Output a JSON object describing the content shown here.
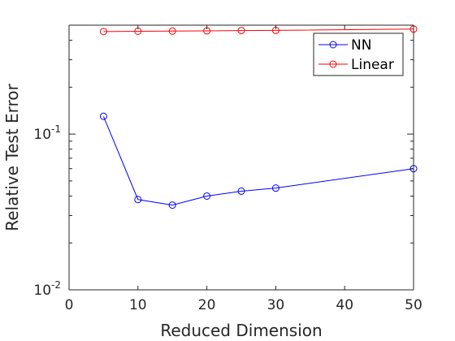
{
  "chart_data": {
    "type": "line",
    "xlabel": "Reduced Dimension",
    "ylabel": "Relative Test Error",
    "xlim": [
      0,
      50
    ],
    "ylim": [
      0.01,
      0.5
    ],
    "yscale": "log",
    "grid": false,
    "legend_position": "top-right",
    "xticks": [
      0,
      10,
      20,
      30,
      40,
      50
    ],
    "xtick_labels": [
      "0",
      "10",
      "20",
      "30",
      "40",
      "50"
    ],
    "yticks": [
      0.01,
      0.1
    ],
    "ytick_labels": [
      {
        "base": "10",
        "exp": "-2"
      },
      {
        "base": "10",
        "exp": "-1"
      }
    ],
    "series": [
      {
        "name": "NN",
        "color": "#0000ff",
        "marker": "circle",
        "x": [
          5,
          10,
          15,
          20,
          25,
          30,
          50
        ],
        "y": [
          0.13,
          0.038,
          0.035,
          0.04,
          0.043,
          0.045,
          0.06
        ]
      },
      {
        "name": "Linear",
        "color": "#ff0000",
        "marker": "circle",
        "x": [
          5,
          10,
          15,
          20,
          25,
          30,
          50
        ],
        "y": [
          0.455,
          0.457,
          0.458,
          0.46,
          0.462,
          0.463,
          0.472
        ]
      }
    ]
  }
}
